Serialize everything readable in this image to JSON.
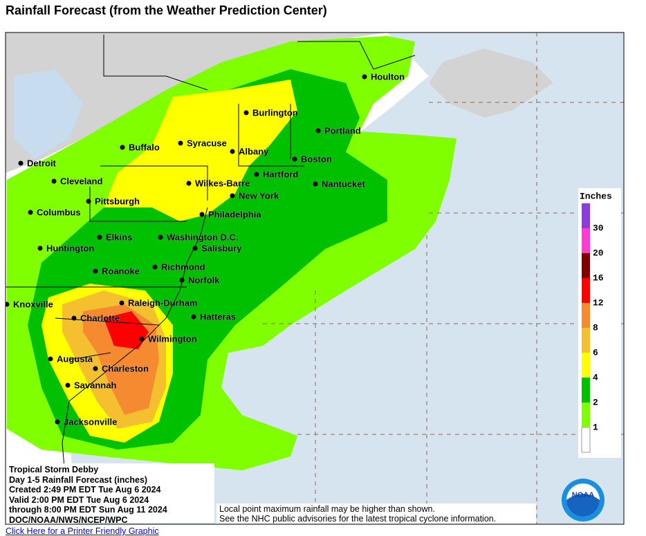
{
  "header": {
    "title": "Rainfall Forecast (from the Weather Prediction Center)"
  },
  "cities": [
    "Houlton",
    "Burlington",
    "Portland",
    "Buffalo",
    "Syracuse",
    "Albany",
    "Boston",
    "Detroit",
    "Hartford",
    "Cleveland",
    "Nantucket",
    "Wilkes-Barre",
    "New York",
    "Pittsburgh",
    "Columbus",
    "Philadelphia",
    "Elkins",
    "Washington D.C.",
    "Salisbury",
    "Huntington",
    "Richmond",
    "Roanoke",
    "Norfolk",
    "Knoxville",
    "Raleigh-Durham",
    "Hatteras",
    "Charlotte",
    "Wilmington",
    "Augusta",
    "Charleston",
    "Savannah",
    "Jacksonville"
  ],
  "legend": {
    "title": "Inches",
    "labels": [
      "1",
      "2",
      "4",
      "6",
      "8",
      "12",
      "16",
      "20",
      "30"
    ],
    "colors": [
      "#ffffff",
      "#7fff00",
      "#00c000",
      "#008800",
      "#ffff00",
      "#f5c030",
      "#f58a30",
      "#ff0000",
      "#800000",
      "#ff3cd2",
      "#8c3cdc"
    ]
  },
  "info": [
    "Tropical Storm Debby",
    "Day 1-5 Rainfall Forecast (inches)",
    "Created 2:49 PM EDT Tue Aug 6 2024",
    "Valid 2:00 PM EDT Tue Aug 6 2024",
    "through 8:00 PM EDT Sun Aug 11 2024",
    "DOC/NOAA/NWS/NCEP/WPC"
  ],
  "disclaimer": [
    "Local point maximum rainfall may be higher than shown.",
    "See the NHC public advisories for the latest tropical cyclone information."
  ],
  "logo": "NOAA",
  "link": "Click Here for a Printer Friendly Graphic"
}
